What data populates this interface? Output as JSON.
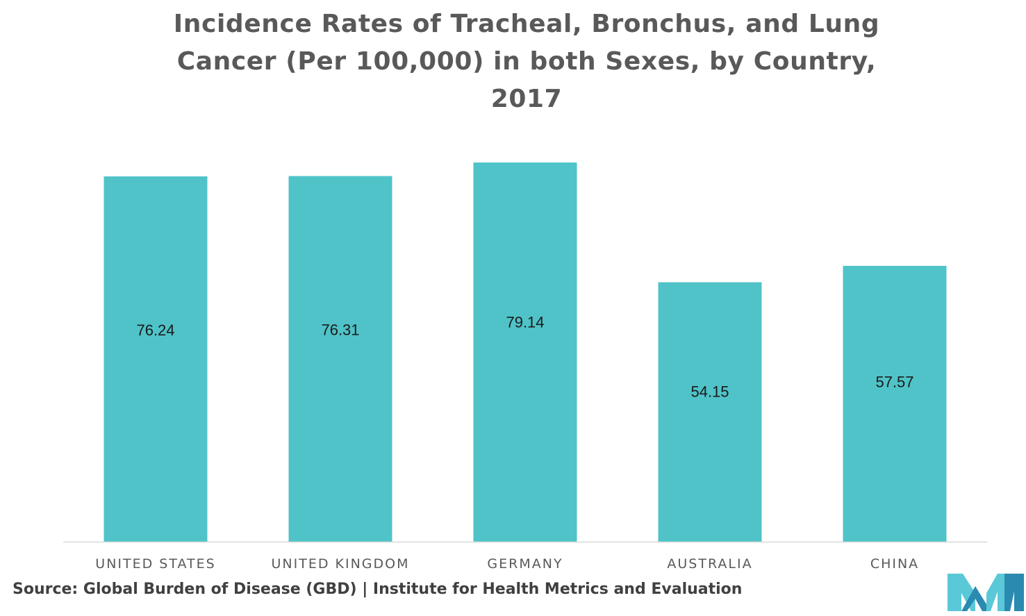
{
  "chart_data": {
    "type": "bar",
    "title": "Incidence Rates of Tracheal, Bronchus, and Lung Cancer (Per 100,000) in both Sexes, by Country, 2017",
    "categories": [
      "UNITED STATES",
      "UNITED KINGDOM",
      "GERMANY",
      "AUSTRALIA",
      "CHINA"
    ],
    "values": [
      76.24,
      76.31,
      79.14,
      54.15,
      57.57
    ],
    "value_labels": [
      "76.24",
      "76.31",
      "79.14",
      "54.15",
      "57.57"
    ],
    "xlabel": "",
    "ylabel": "",
    "ylim": [
      0,
      80
    ],
    "grid": false,
    "legend": "none",
    "bar_color": "#4FC3C8",
    "data_label_position": "inside"
  },
  "source": "Source: Global Burden of Disease (GBD) | Institute for Health Metrics and Evaluation",
  "colors": {
    "title": "#595959",
    "axis_line": "#d9d9d9",
    "tick_label": "#595959",
    "data_label": "#1a1a1a",
    "source": "#404040",
    "logo_light": "#5bc8d8",
    "logo_dark": "#2a8ab0"
  },
  "icons": {
    "brand_logo": "brand-logo-icon"
  }
}
